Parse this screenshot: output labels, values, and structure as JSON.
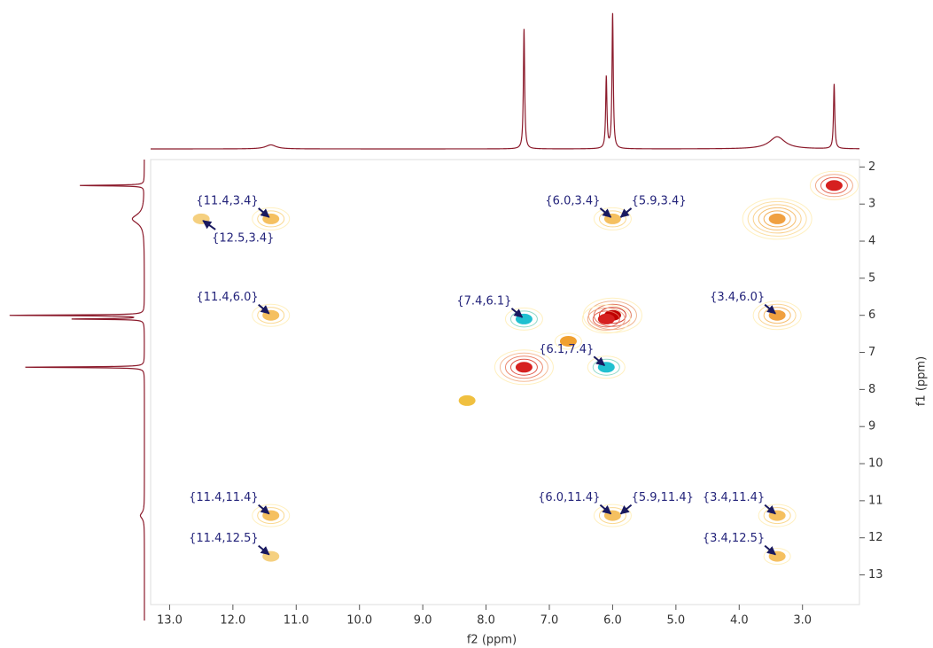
{
  "chart_data": {
    "type": "contour",
    "xlabel": "f2 (ppm)",
    "ylabel": "f1 (ppm)",
    "xlim": [
      13.3,
      2.1
    ],
    "ylim": [
      1.8,
      13.8
    ],
    "xticks": [
      {
        "value": 13,
        "label": "13.0"
      },
      {
        "value": 12,
        "label": "12.0"
      },
      {
        "value": 11,
        "label": "11.0"
      },
      {
        "value": 10,
        "label": "10.0"
      },
      {
        "value": 9,
        "label": "9.0"
      },
      {
        "value": 8,
        "label": "8.0"
      },
      {
        "value": 7,
        "label": "7.0"
      },
      {
        "value": 6,
        "label": "6.0"
      },
      {
        "value": 5,
        "label": "5.0"
      },
      {
        "value": 4,
        "label": "4.0"
      },
      {
        "value": 3,
        "label": "3.0"
      }
    ],
    "yticks": [
      2,
      3,
      4,
      5,
      6,
      7,
      8,
      9,
      10,
      11,
      12,
      13
    ],
    "trace_color": "#8b1a2b",
    "projection": {
      "positions": [
        11.4,
        7.4,
        6.1,
        6.0,
        3.4,
        2.5
      ],
      "heights": [
        3,
        89,
        53,
        100,
        9,
        48
      ],
      "widths": [
        0.1,
        0.012,
        0.012,
        0.012,
        0.15,
        0.012
      ]
    },
    "peaks": {
      "x": [
        2.5,
        3.4,
        6.0,
        6.1,
        7.4,
        6.7,
        8.3,
        11.4,
        6.0,
        11.4,
        7.4,
        3.4,
        6.1,
        11.4,
        6.0,
        3.4,
        3.4,
        11.4,
        12.5
      ],
      "y": [
        2.5,
        3.4,
        6.0,
        6.1,
        7.4,
        6.7,
        8.3,
        3.4,
        3.4,
        6.0,
        6.1,
        6.0,
        7.4,
        11.4,
        11.4,
        11.4,
        12.5,
        12.5,
        3.4
      ],
      "size": [
        4,
        6,
        5,
        4,
        5,
        2,
        1,
        3,
        3,
        3,
        3,
        4,
        3,
        3,
        3,
        3,
        2,
        1,
        1
      ],
      "color": [
        "#d62020",
        "#f0a040",
        "#c00000",
        "#d62020",
        "#d62020",
        "#f0a030",
        "#f0c040",
        "#f5c060",
        "#f5c060",
        "#f5c060",
        "#20c0d0",
        "#f0a040",
        "#20c0d0",
        "#f5c060",
        "#f5c060",
        "#f5c060",
        "#f5c060",
        "#f5d080",
        "#f5d080"
      ]
    },
    "annotations": {
      "text": [
        "{11.4,3.4}",
        "{12.5,3.4}",
        "{6.0,3.4}",
        "{5.9,3.4}",
        "{11.4,6.0}",
        "{7.4,6.1}",
        "{3.4,6.0}",
        "{6.1,7.4}",
        "{11.4,11.4}",
        "{6.0,11.4}",
        "{5.9,11.4}",
        "{3.4,11.4}",
        "{11.4,12.5}",
        "{3.4,12.5}"
      ],
      "x": [
        11.4,
        12.5,
        6.0,
        5.9,
        11.4,
        7.4,
        3.4,
        6.1,
        11.4,
        6.0,
        5.9,
        3.4,
        11.4,
        3.4
      ],
      "y": [
        3.4,
        3.4,
        3.4,
        3.4,
        6.0,
        6.1,
        6.0,
        7.4,
        11.4,
        11.4,
        11.4,
        11.4,
        12.5,
        12.5
      ]
    }
  }
}
